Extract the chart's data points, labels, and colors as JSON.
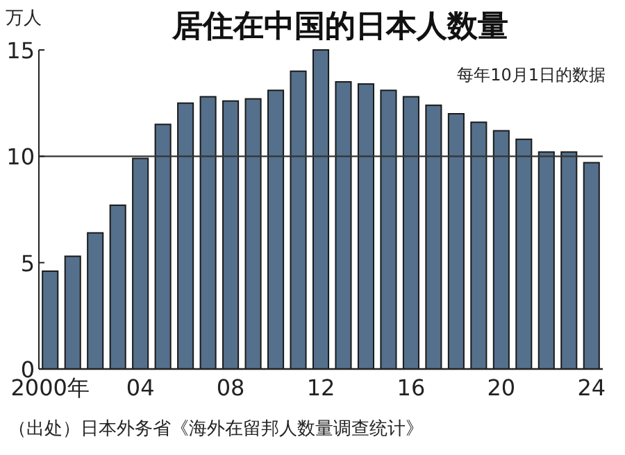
{
  "chart_data": {
    "type": "bar",
    "title": "居住在中国的日本人数量",
    "ylabel": "万人",
    "annotations": [
      "每年10月1日的数据",
      "（出处）日本外务省《海外在留邦人数量调查统计》"
    ],
    "categories": [
      "2000年",
      null,
      null,
      null,
      "04",
      null,
      null,
      null,
      "08",
      null,
      null,
      null,
      "12",
      null,
      null,
      null,
      "16",
      null,
      null,
      null,
      "20",
      null,
      null,
      null,
      "24"
    ],
    "values": [
      4.6,
      5.3,
      6.4,
      7.7,
      9.9,
      11.5,
      12.5,
      12.8,
      12.6,
      12.7,
      13.1,
      14.0,
      15.0,
      13.5,
      13.4,
      13.1,
      12.8,
      12.4,
      12.0,
      11.6,
      11.2,
      10.8,
      10.2,
      10.2,
      9.7
    ],
    "color": "#54708c",
    "ylim": [
      0,
      15
    ],
    "yticks": [
      0,
      5,
      10,
      15
    ],
    "ref_lines": [
      {
        "axis": "y",
        "value": 10,
        "color": "#333333"
      }
    ],
    "grid": false
  }
}
